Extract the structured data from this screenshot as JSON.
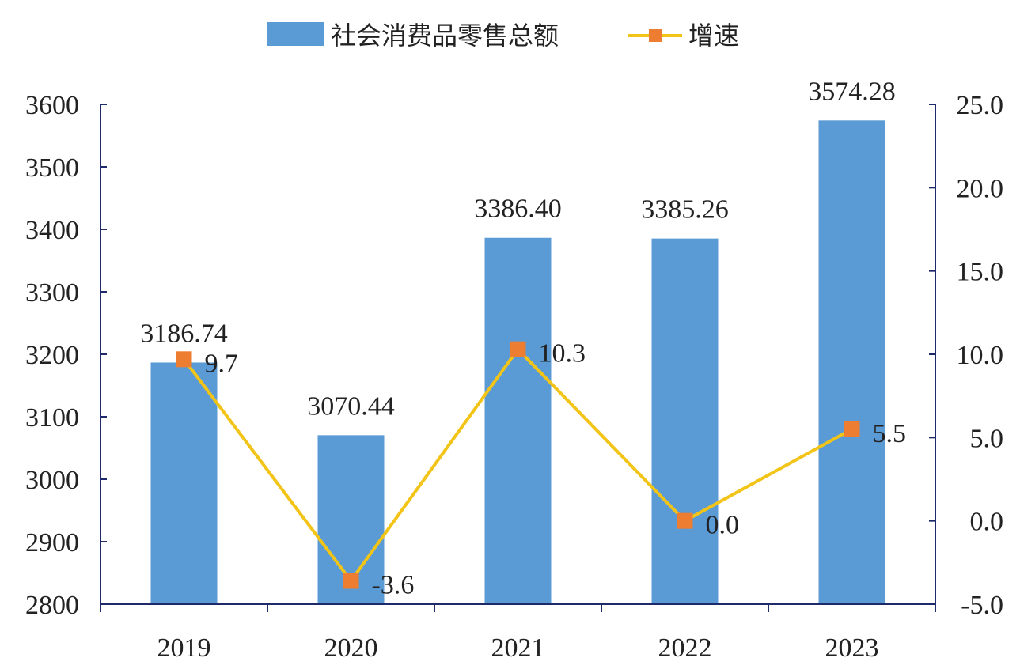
{
  "chart_data": {
    "type": "bar",
    "categories": [
      "2019",
      "2020",
      "2021",
      "2022",
      "2023"
    ],
    "series": [
      {
        "name": "社会消费品零售总额",
        "type": "bar",
        "axis": "left",
        "values": [
          3186.74,
          3070.44,
          3386.4,
          3385.26,
          3574.28
        ],
        "labels": [
          "3186.74",
          "3070.44",
          "3386.40",
          "3385.26",
          "3574.28"
        ],
        "color": "#5B9BD5"
      },
      {
        "name": "增速",
        "type": "line",
        "axis": "right",
        "values": [
          9.7,
          -3.6,
          10.3,
          0.0,
          5.5
        ],
        "labels": [
          "9.7",
          "-3.6",
          "10.3",
          "0.0",
          "5.5"
        ],
        "line_color": "#F2C418",
        "marker_color": "#ED7D31"
      }
    ],
    "y_left": {
      "min": 2800,
      "max": 3600,
      "ticks": [
        2800,
        2900,
        3000,
        3100,
        3200,
        3300,
        3400,
        3500,
        3600
      ],
      "tick_labels": [
        "2800",
        "2900",
        "3000",
        "3100",
        "3200",
        "3300",
        "3400",
        "3500",
        "3600"
      ]
    },
    "y_right": {
      "min": -5,
      "max": 25,
      "ticks": [
        -5,
        0,
        5,
        10,
        15,
        20,
        25
      ],
      "tick_labels": [
        "-5.0",
        "0.0",
        "5.0",
        "10.0",
        "15.0",
        "20.0",
        "25.0"
      ]
    },
    "legend_position": "top-center",
    "grid": false,
    "axis_color": "#1F2A6B"
  }
}
